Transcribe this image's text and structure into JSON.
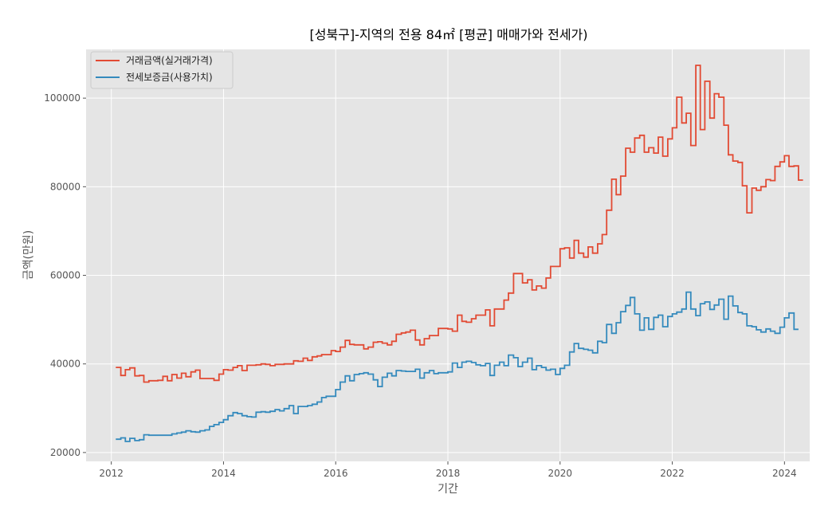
{
  "chart_data": {
    "type": "line",
    "step": true,
    "title": "[성북구]-지역의 전용 84㎡ [평균] 매매가와 전세가)",
    "xlabel": "기간",
    "ylabel": "금액(만원)",
    "xlim": [
      2011.55,
      2024.45
    ],
    "ylim": [
      18000,
      111000
    ],
    "xticks": [
      2012,
      2014,
      2016,
      2018,
      2020,
      2022,
      2024
    ],
    "xtick_labels": [
      "2012",
      "2014",
      "2016",
      "2018",
      "2020",
      "2022",
      "2024"
    ],
    "yticks": [
      20000,
      40000,
      60000,
      80000,
      100000
    ],
    "ytick_labels": [
      "20000",
      "40000",
      "60000",
      "80000",
      "100000"
    ],
    "grid": true,
    "legend_position": "top-left",
    "series": [
      {
        "name": "거래금액(실거래가격)",
        "color": "#E24A33",
        "points": [
          [
            2012.08,
            39200
          ],
          [
            2012.17,
            37400
          ],
          [
            2012.25,
            38700
          ],
          [
            2012.33,
            39100
          ],
          [
            2012.42,
            37300
          ],
          [
            2012.5,
            37400
          ],
          [
            2012.58,
            35900
          ],
          [
            2012.67,
            36200
          ],
          [
            2012.75,
            36200
          ],
          [
            2012.83,
            36300
          ],
          [
            2012.92,
            37200
          ],
          [
            2013.0,
            36200
          ],
          [
            2013.08,
            37600
          ],
          [
            2013.17,
            36800
          ],
          [
            2013.25,
            37900
          ],
          [
            2013.33,
            37100
          ],
          [
            2013.42,
            38200
          ],
          [
            2013.5,
            38600
          ],
          [
            2013.58,
            36700
          ],
          [
            2013.67,
            36700
          ],
          [
            2013.75,
            36700
          ],
          [
            2013.83,
            36300
          ],
          [
            2013.92,
            37700
          ],
          [
            2014.0,
            38700
          ],
          [
            2014.08,
            38600
          ],
          [
            2014.17,
            39200
          ],
          [
            2014.25,
            39600
          ],
          [
            2014.33,
            38500
          ],
          [
            2014.42,
            39700
          ],
          [
            2014.5,
            39700
          ],
          [
            2014.58,
            39800
          ],
          [
            2014.67,
            40000
          ],
          [
            2014.75,
            39900
          ],
          [
            2014.83,
            39600
          ],
          [
            2014.92,
            39900
          ],
          [
            2015.0,
            39900
          ],
          [
            2015.08,
            40000
          ],
          [
            2015.17,
            40000
          ],
          [
            2015.25,
            40700
          ],
          [
            2015.33,
            40600
          ],
          [
            2015.42,
            41300
          ],
          [
            2015.5,
            40800
          ],
          [
            2015.58,
            41600
          ],
          [
            2015.67,
            41800
          ],
          [
            2015.75,
            42100
          ],
          [
            2015.83,
            42100
          ],
          [
            2015.92,
            43000
          ],
          [
            2016.0,
            42800
          ],
          [
            2016.08,
            43800
          ],
          [
            2016.17,
            45300
          ],
          [
            2016.25,
            44400
          ],
          [
            2016.33,
            44300
          ],
          [
            2016.42,
            44300
          ],
          [
            2016.5,
            43400
          ],
          [
            2016.58,
            43800
          ],
          [
            2016.67,
            44900
          ],
          [
            2016.75,
            45000
          ],
          [
            2016.83,
            44700
          ],
          [
            2016.92,
            44300
          ],
          [
            2017.0,
            45100
          ],
          [
            2017.08,
            46700
          ],
          [
            2017.17,
            47000
          ],
          [
            2017.25,
            47200
          ],
          [
            2017.33,
            47600
          ],
          [
            2017.42,
            45400
          ],
          [
            2017.5,
            44300
          ],
          [
            2017.58,
            45700
          ],
          [
            2017.67,
            46400
          ],
          [
            2017.75,
            46400
          ],
          [
            2017.83,
            48000
          ],
          [
            2017.92,
            48000
          ],
          [
            2018.0,
            47900
          ],
          [
            2018.08,
            47400
          ],
          [
            2018.17,
            51000
          ],
          [
            2018.25,
            49600
          ],
          [
            2018.33,
            49400
          ],
          [
            2018.42,
            50200
          ],
          [
            2018.5,
            51000
          ],
          [
            2018.58,
            51000
          ],
          [
            2018.67,
            52200
          ],
          [
            2018.75,
            48600
          ],
          [
            2018.83,
            52400
          ],
          [
            2018.92,
            52400
          ],
          [
            2019.0,
            54400
          ],
          [
            2019.08,
            56000
          ],
          [
            2019.17,
            60400
          ],
          [
            2019.25,
            60400
          ],
          [
            2019.33,
            58300
          ],
          [
            2019.42,
            59000
          ],
          [
            2019.5,
            56700
          ],
          [
            2019.58,
            57600
          ],
          [
            2019.67,
            57100
          ],
          [
            2019.75,
            59400
          ],
          [
            2019.83,
            62000
          ],
          [
            2019.92,
            62000
          ],
          [
            2020.0,
            66000
          ],
          [
            2020.08,
            66200
          ],
          [
            2020.17,
            63900
          ],
          [
            2020.25,
            67900
          ],
          [
            2020.33,
            65000
          ],
          [
            2020.42,
            64100
          ],
          [
            2020.5,
            66400
          ],
          [
            2020.58,
            65000
          ],
          [
            2020.67,
            67100
          ],
          [
            2020.75,
            69200
          ],
          [
            2020.83,
            74700
          ],
          [
            2020.92,
            81700
          ],
          [
            2021.0,
            78200
          ],
          [
            2021.08,
            82400
          ],
          [
            2021.17,
            88700
          ],
          [
            2021.25,
            87800
          ],
          [
            2021.33,
            91000
          ],
          [
            2021.42,
            91600
          ],
          [
            2021.5,
            87800
          ],
          [
            2021.58,
            88800
          ],
          [
            2021.67,
            87600
          ],
          [
            2021.75,
            91200
          ],
          [
            2021.83,
            86900
          ],
          [
            2021.92,
            90800
          ],
          [
            2022.0,
            93300
          ],
          [
            2022.08,
            100200
          ],
          [
            2022.17,
            94400
          ],
          [
            2022.25,
            96600
          ],
          [
            2022.33,
            89300
          ],
          [
            2022.42,
            107400
          ],
          [
            2022.5,
            92900
          ],
          [
            2022.58,
            103800
          ],
          [
            2022.67,
            95500
          ],
          [
            2022.75,
            101000
          ],
          [
            2022.83,
            100200
          ],
          [
            2022.92,
            93900
          ],
          [
            2023.0,
            87200
          ],
          [
            2023.08,
            85800
          ],
          [
            2023.17,
            85500
          ],
          [
            2023.25,
            80200
          ],
          [
            2023.33,
            74100
          ],
          [
            2023.42,
            79700
          ],
          [
            2023.5,
            79200
          ],
          [
            2023.58,
            80000
          ],
          [
            2023.67,
            81600
          ],
          [
            2023.75,
            81400
          ],
          [
            2023.83,
            84600
          ],
          [
            2023.92,
            85600
          ],
          [
            2024.0,
            87000
          ],
          [
            2024.08,
            84600
          ],
          [
            2024.17,
            84700
          ],
          [
            2024.25,
            81500
          ],
          [
            2024.33,
            81500
          ]
        ]
      },
      {
        "name": "전세보증금(사용가치)",
        "color": "#348ABD",
        "points": [
          [
            2012.08,
            23000
          ],
          [
            2012.17,
            23300
          ],
          [
            2012.25,
            22500
          ],
          [
            2012.33,
            23200
          ],
          [
            2012.42,
            22700
          ],
          [
            2012.5,
            22900
          ],
          [
            2012.58,
            24000
          ],
          [
            2012.67,
            23900
          ],
          [
            2012.75,
            23900
          ],
          [
            2012.83,
            23900
          ],
          [
            2012.92,
            23900
          ],
          [
            2013.0,
            23900
          ],
          [
            2013.08,
            24200
          ],
          [
            2013.17,
            24400
          ],
          [
            2013.25,
            24600
          ],
          [
            2013.33,
            24900
          ],
          [
            2013.42,
            24700
          ],
          [
            2013.5,
            24600
          ],
          [
            2013.58,
            24900
          ],
          [
            2013.67,
            25100
          ],
          [
            2013.75,
            25900
          ],
          [
            2013.83,
            26300
          ],
          [
            2013.92,
            26800
          ],
          [
            2014.0,
            27400
          ],
          [
            2014.08,
            28300
          ],
          [
            2014.17,
            29000
          ],
          [
            2014.25,
            28800
          ],
          [
            2014.33,
            28300
          ],
          [
            2014.42,
            28100
          ],
          [
            2014.5,
            28000
          ],
          [
            2014.58,
            29100
          ],
          [
            2014.67,
            29200
          ],
          [
            2014.75,
            29100
          ],
          [
            2014.83,
            29300
          ],
          [
            2014.92,
            29700
          ],
          [
            2015.0,
            29400
          ],
          [
            2015.08,
            29900
          ],
          [
            2015.17,
            30600
          ],
          [
            2015.25,
            28800
          ],
          [
            2015.33,
            30400
          ],
          [
            2015.42,
            30400
          ],
          [
            2015.5,
            30600
          ],
          [
            2015.58,
            30900
          ],
          [
            2015.67,
            31400
          ],
          [
            2015.75,
            32400
          ],
          [
            2015.83,
            32700
          ],
          [
            2015.92,
            32700
          ],
          [
            2016.0,
            34200
          ],
          [
            2016.08,
            35900
          ],
          [
            2016.17,
            37300
          ],
          [
            2016.25,
            36200
          ],
          [
            2016.33,
            37600
          ],
          [
            2016.42,
            37800
          ],
          [
            2016.5,
            38000
          ],
          [
            2016.58,
            37700
          ],
          [
            2016.67,
            36400
          ],
          [
            2016.75,
            34900
          ],
          [
            2016.83,
            37000
          ],
          [
            2016.92,
            37900
          ],
          [
            2017.0,
            37300
          ],
          [
            2017.08,
            38500
          ],
          [
            2017.17,
            38400
          ],
          [
            2017.25,
            38300
          ],
          [
            2017.33,
            38300
          ],
          [
            2017.42,
            38800
          ],
          [
            2017.5,
            36800
          ],
          [
            2017.58,
            38000
          ],
          [
            2017.67,
            38500
          ],
          [
            2017.75,
            37800
          ],
          [
            2017.83,
            38000
          ],
          [
            2017.92,
            38000
          ],
          [
            2018.0,
            38200
          ],
          [
            2018.08,
            40200
          ],
          [
            2018.17,
            39200
          ],
          [
            2018.25,
            40400
          ],
          [
            2018.33,
            40600
          ],
          [
            2018.42,
            40300
          ],
          [
            2018.5,
            39800
          ],
          [
            2018.58,
            39600
          ],
          [
            2018.67,
            40100
          ],
          [
            2018.75,
            37400
          ],
          [
            2018.83,
            39700
          ],
          [
            2018.92,
            40400
          ],
          [
            2019.0,
            39600
          ],
          [
            2019.08,
            42000
          ],
          [
            2019.17,
            41400
          ],
          [
            2019.25,
            39400
          ],
          [
            2019.33,
            40400
          ],
          [
            2019.42,
            41300
          ],
          [
            2019.5,
            38700
          ],
          [
            2019.58,
            39600
          ],
          [
            2019.67,
            39200
          ],
          [
            2019.75,
            38600
          ],
          [
            2019.83,
            38800
          ],
          [
            2019.92,
            37600
          ],
          [
            2020.0,
            39000
          ],
          [
            2020.08,
            39700
          ],
          [
            2020.17,
            42700
          ],
          [
            2020.25,
            44600
          ],
          [
            2020.33,
            43500
          ],
          [
            2020.42,
            43300
          ],
          [
            2020.5,
            43100
          ],
          [
            2020.58,
            42500
          ],
          [
            2020.67,
            45100
          ],
          [
            2020.75,
            44800
          ],
          [
            2020.83,
            48900
          ],
          [
            2020.92,
            46900
          ],
          [
            2021.0,
            49300
          ],
          [
            2021.08,
            51800
          ],
          [
            2021.17,
            53200
          ],
          [
            2021.25,
            55000
          ],
          [
            2021.33,
            51300
          ],
          [
            2021.42,
            47600
          ],
          [
            2021.5,
            50400
          ],
          [
            2021.58,
            47800
          ],
          [
            2021.67,
            50500
          ],
          [
            2021.75,
            51000
          ],
          [
            2021.83,
            48400
          ],
          [
            2021.92,
            50700
          ],
          [
            2022.0,
            51300
          ],
          [
            2022.08,
            51700
          ],
          [
            2022.17,
            52400
          ],
          [
            2022.25,
            56200
          ],
          [
            2022.33,
            52400
          ],
          [
            2022.42,
            50900
          ],
          [
            2022.5,
            53600
          ],
          [
            2022.58,
            54000
          ],
          [
            2022.67,
            52300
          ],
          [
            2022.75,
            53300
          ],
          [
            2022.83,
            54600
          ],
          [
            2022.92,
            50100
          ],
          [
            2023.0,
            55300
          ],
          [
            2023.08,
            53100
          ],
          [
            2023.17,
            51600
          ],
          [
            2023.25,
            51300
          ],
          [
            2023.33,
            48600
          ],
          [
            2023.42,
            48400
          ],
          [
            2023.5,
            47700
          ],
          [
            2023.58,
            47200
          ],
          [
            2023.67,
            47900
          ],
          [
            2023.75,
            47400
          ],
          [
            2023.83,
            46900
          ],
          [
            2023.92,
            48300
          ],
          [
            2024.0,
            50400
          ],
          [
            2024.08,
            51500
          ],
          [
            2024.17,
            47800
          ],
          [
            2024.25,
            47800
          ]
        ]
      }
    ]
  }
}
